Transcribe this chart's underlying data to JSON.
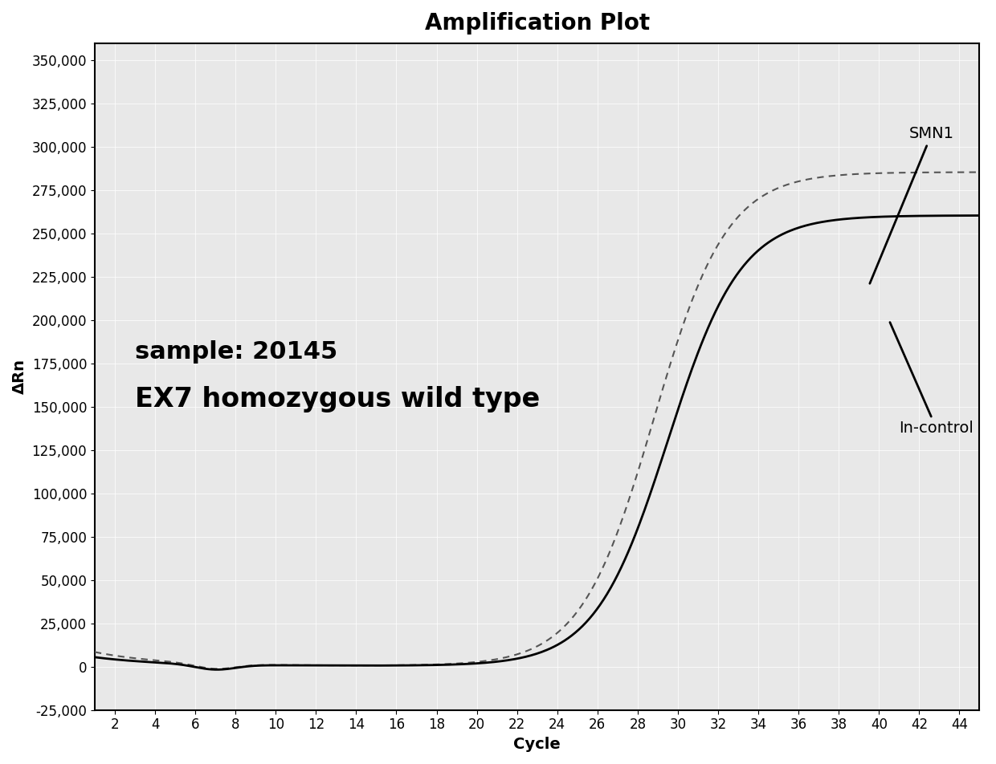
{
  "title": "Amplification Plot",
  "xlabel": "Cycle",
  "ylabel": "ΔRn",
  "xlim": [
    1,
    45
  ],
  "ylim": [
    -25000,
    360000
  ],
  "xticks": [
    2,
    4,
    6,
    8,
    10,
    12,
    14,
    16,
    18,
    20,
    22,
    24,
    26,
    28,
    30,
    32,
    34,
    36,
    38,
    40,
    42,
    44
  ],
  "yticks": [
    -25000,
    0,
    25000,
    50000,
    75000,
    100000,
    125000,
    150000,
    175000,
    200000,
    225000,
    250000,
    275000,
    300000,
    325000,
    350000
  ],
  "annotation_text1": "sample: 20145",
  "annotation_text2": "EX7 homozygous wild type",
  "label_smn1": "SMN1",
  "label_incontrol": "In-control",
  "smn1_color": "#000000",
  "incontrol_color": "#555555",
  "background_color": "#ffffff",
  "plot_bg_color": "#e8e8e8",
  "title_fontsize": 20,
  "axis_label_fontsize": 14,
  "tick_fontsize": 12,
  "annotation_fontsize1": 22,
  "annotation_fontsize2": 24
}
